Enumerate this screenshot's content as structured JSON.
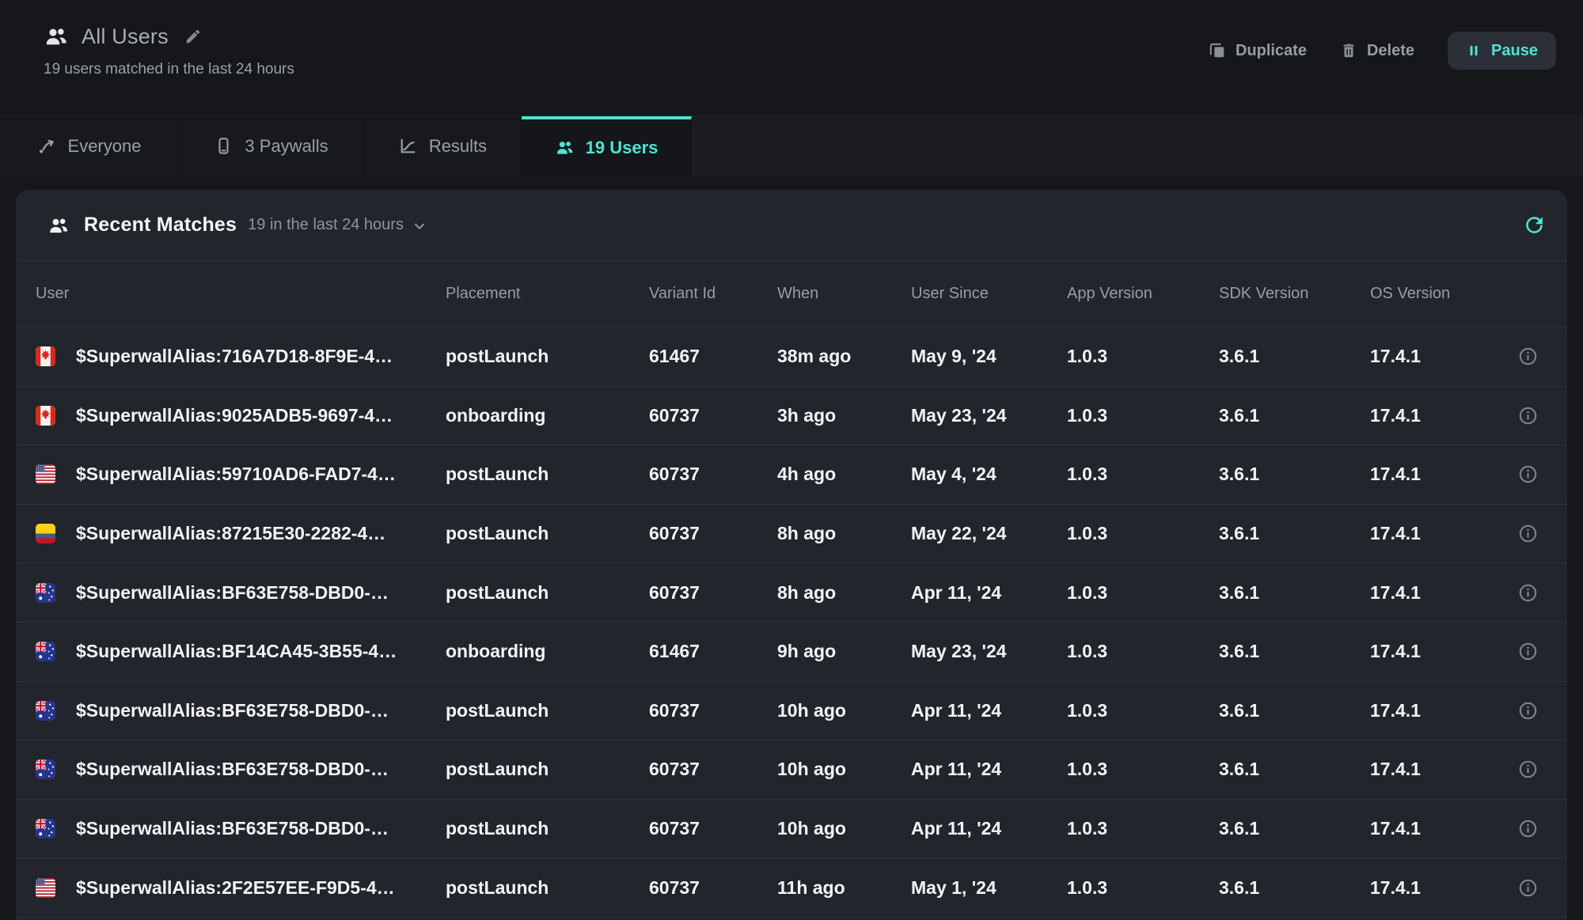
{
  "colors": {
    "accent": "#4fe3d3"
  },
  "header": {
    "title": "All Users",
    "subtitle": "19 users matched in the last 24 hours",
    "duplicate_label": "Duplicate",
    "delete_label": "Delete",
    "pause_label": "Pause"
  },
  "tabs": [
    {
      "label": "Everyone",
      "active": false
    },
    {
      "label": "3 Paywalls",
      "active": false
    },
    {
      "label": "Results",
      "active": false
    },
    {
      "label": "19 Users",
      "active": true
    }
  ],
  "card": {
    "title": "Recent Matches",
    "filter_label": "19 in the last 24 hours"
  },
  "table": {
    "columns": [
      "User",
      "Placement",
      "Variant Id",
      "When",
      "User Since",
      "App Version",
      "SDK Version",
      "OS Version"
    ],
    "rows": [
      {
        "flag": "ca",
        "user": "$SuperwallAlias:716A7D18-8F9E-4…",
        "placement": "postLaunch",
        "variant_id": "61467",
        "when": "38m ago",
        "user_since": "May 9, '24",
        "app_version": "1.0.3",
        "sdk_version": "3.6.1",
        "os_version": "17.4.1"
      },
      {
        "flag": "ca",
        "user": "$SuperwallAlias:9025ADB5-9697-4…",
        "placement": "onboarding",
        "variant_id": "60737",
        "when": "3h ago",
        "user_since": "May 23, '24",
        "app_version": "1.0.3",
        "sdk_version": "3.6.1",
        "os_version": "17.4.1"
      },
      {
        "flag": "us",
        "user": "$SuperwallAlias:59710AD6-FAD7-4…",
        "placement": "postLaunch",
        "variant_id": "60737",
        "when": "4h ago",
        "user_since": "May 4, '24",
        "app_version": "1.0.3",
        "sdk_version": "3.6.1",
        "os_version": "17.4.1"
      },
      {
        "flag": "co",
        "user": "$SuperwallAlias:87215E30-2282-4…",
        "placement": "postLaunch",
        "variant_id": "60737",
        "when": "8h ago",
        "user_since": "May 22, '24",
        "app_version": "1.0.3",
        "sdk_version": "3.6.1",
        "os_version": "17.4.1"
      },
      {
        "flag": "au",
        "user": "$SuperwallAlias:BF63E758-DBD0-…",
        "placement": "postLaunch",
        "variant_id": "60737",
        "when": "8h ago",
        "user_since": "Apr 11, '24",
        "app_version": "1.0.3",
        "sdk_version": "3.6.1",
        "os_version": "17.4.1"
      },
      {
        "flag": "au",
        "user": "$SuperwallAlias:BF14CA45-3B55-4…",
        "placement": "onboarding",
        "variant_id": "61467",
        "when": "9h ago",
        "user_since": "May 23, '24",
        "app_version": "1.0.3",
        "sdk_version": "3.6.1",
        "os_version": "17.4.1"
      },
      {
        "flag": "au",
        "user": "$SuperwallAlias:BF63E758-DBD0-…",
        "placement": "postLaunch",
        "variant_id": "60737",
        "when": "10h ago",
        "user_since": "Apr 11, '24",
        "app_version": "1.0.3",
        "sdk_version": "3.6.1",
        "os_version": "17.4.1"
      },
      {
        "flag": "au",
        "user": "$SuperwallAlias:BF63E758-DBD0-…",
        "placement": "postLaunch",
        "variant_id": "60737",
        "when": "10h ago",
        "user_since": "Apr 11, '24",
        "app_version": "1.0.3",
        "sdk_version": "3.6.1",
        "os_version": "17.4.1"
      },
      {
        "flag": "au",
        "user": "$SuperwallAlias:BF63E758-DBD0-…",
        "placement": "postLaunch",
        "variant_id": "60737",
        "when": "10h ago",
        "user_since": "Apr 11, '24",
        "app_version": "1.0.3",
        "sdk_version": "3.6.1",
        "os_version": "17.4.1"
      },
      {
        "flag": "us",
        "user": "$SuperwallAlias:2F2E57EE-F9D5-4…",
        "placement": "postLaunch",
        "variant_id": "60737",
        "when": "11h ago",
        "user_since": "May 1, '24",
        "app_version": "1.0.3",
        "sdk_version": "3.6.1",
        "os_version": "17.4.1"
      }
    ]
  }
}
